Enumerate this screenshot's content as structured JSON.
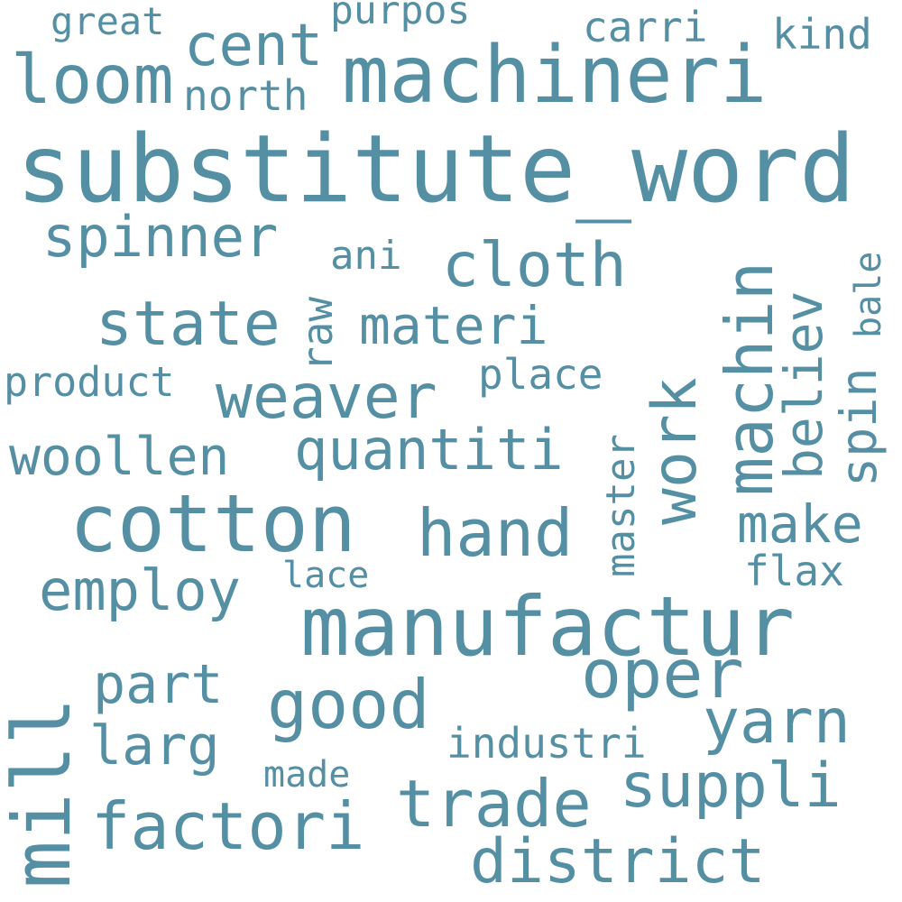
{
  "cloud": {
    "color": "#558FA4",
    "background": "#ffffff",
    "words": [
      {
        "text": "substitute_word",
        "vertical": false
      },
      {
        "text": "manufactur",
        "vertical": false
      },
      {
        "text": "machineri",
        "vertical": false
      },
      {
        "text": "cotton",
        "vertical": false
      },
      {
        "text": "mill",
        "vertical": true
      },
      {
        "text": "machin",
        "vertical": true
      },
      {
        "text": "oper",
        "vertical": false
      },
      {
        "text": "good",
        "vertical": false
      },
      {
        "text": "trade",
        "vertical": false
      },
      {
        "text": "factori",
        "vertical": false
      },
      {
        "text": "loom",
        "vertical": false
      },
      {
        "text": "hand",
        "vertical": false
      },
      {
        "text": "work",
        "vertical": true
      },
      {
        "text": "suppli",
        "vertical": false
      },
      {
        "text": "district",
        "vertical": false
      },
      {
        "text": "cloth",
        "vertical": false
      },
      {
        "text": "yarn",
        "vertical": false
      },
      {
        "text": "weaver",
        "vertical": false
      },
      {
        "text": "state",
        "vertical": false
      },
      {
        "text": "cent",
        "vertical": false
      },
      {
        "text": "spinner",
        "vertical": false
      },
      {
        "text": "employ",
        "vertical": false
      },
      {
        "text": "woollen",
        "vertical": false
      },
      {
        "text": "quantiti",
        "vertical": false
      },
      {
        "text": "materi",
        "vertical": false
      },
      {
        "text": "make",
        "vertical": false
      },
      {
        "text": "believ",
        "vertical": true
      },
      {
        "text": "part",
        "vertical": false
      },
      {
        "text": "larg",
        "vertical": false
      },
      {
        "text": "spin",
        "vertical": true
      },
      {
        "text": "carri",
        "vertical": false
      },
      {
        "text": "north",
        "vertical": false
      },
      {
        "text": "product",
        "vertical": false
      },
      {
        "text": "industri",
        "vertical": false
      },
      {
        "text": "place",
        "vertical": false
      },
      {
        "text": "master",
        "vertical": true
      },
      {
        "text": "raw",
        "vertical": true
      },
      {
        "text": "flax",
        "vertical": false
      },
      {
        "text": "kind",
        "vertical": false
      },
      {
        "text": "great",
        "vertical": false
      },
      {
        "text": "purpos",
        "vertical": false
      },
      {
        "text": "ani",
        "vertical": false
      },
      {
        "text": "bale",
        "vertical": true
      },
      {
        "text": "lace",
        "vertical": false
      },
      {
        "text": "made",
        "vertical": false
      }
    ]
  }
}
